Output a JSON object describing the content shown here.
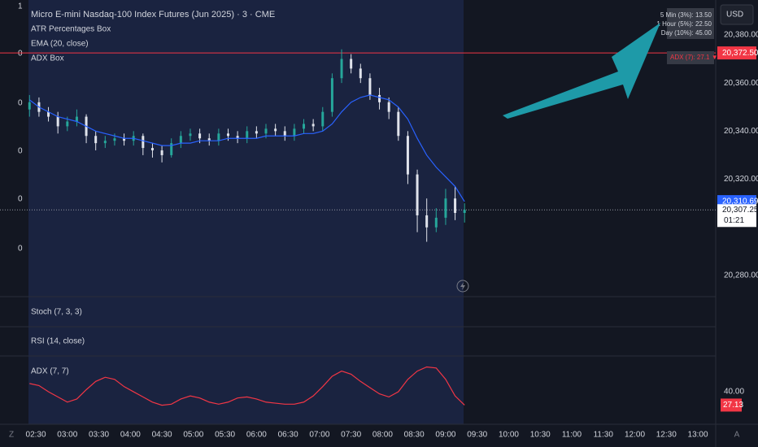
{
  "chart_data": {
    "type": "candlestick",
    "title": "Micro E-mini Nasdaq-100 Index Futures (Jun 2025) · 3 · CME",
    "indicators": [
      "ATR Percentages Box",
      "EMA (20, close)",
      "ADX Box"
    ],
    "left_scale_labels": [
      "1",
      "0",
      "0",
      "0",
      "0",
      "0"
    ],
    "atr_box": [
      "5 Min (3%): 13.50",
      "1 Hour (5%): 22.50",
      "Day (10%): 45.00"
    ],
    "currency": "USD",
    "adx_box_label": "ADX (7): 27.1 ▼",
    "horizontal_line": {
      "value": 20372.5,
      "label": "20,372.50",
      "color": "#f23645"
    },
    "x": [
      144,
      153,
      162,
      171,
      180,
      189,
      198,
      207,
      216,
      225,
      234,
      243,
      252,
      261,
      270,
      279,
      288,
      297,
      306,
      315,
      324,
      333,
      342,
      351,
      360,
      369,
      378,
      387,
      396,
      405,
      414,
      423,
      432,
      441,
      450,
      459,
      468,
      477,
      486,
      495,
      504,
      513,
      522,
      531,
      540,
      549,
      558
    ],
    "open": [
      20349,
      20352,
      20348,
      20346,
      20342,
      20344,
      20346,
      20338,
      20335,
      20336,
      20337,
      20336,
      20338,
      20333,
      20332,
      20330,
      20335,
      20338,
      20339,
      20337,
      20336,
      20339,
      20338,
      20337,
      20340,
      20339,
      20341,
      20340,
      20338,
      20341,
      20343,
      20342,
      20348,
      20362,
      20370,
      20366,
      20362,
      20355,
      20352,
      20348,
      20338,
      20322,
      20305,
      20300,
      20304,
      20312,
      20306
    ],
    "high": [
      20355,
      20354,
      20350,
      20348,
      20346,
      20349,
      20347,
      20340,
      20338,
      20339,
      20339,
      20340,
      20339,
      20335,
      20334,
      20337,
      20340,
      20341,
      20341,
      20339,
      20341,
      20341,
      20340,
      20342,
      20342,
      20343,
      20343,
      20342,
      20343,
      20345,
      20345,
      20350,
      20364,
      20374,
      20372,
      20368,
      20364,
      20358,
      20354,
      20350,
      20340,
      20324,
      20312,
      20308,
      20316,
      20317,
      20310
    ],
    "low": [
      20346,
      20346,
      20344,
      20339,
      20340,
      20342,
      20335,
      20332,
      20333,
      20334,
      20334,
      20334,
      20330,
      20329,
      20327,
      20329,
      20333,
      20336,
      20335,
      20334,
      20334,
      20336,
      20335,
      20335,
      20337,
      20337,
      20338,
      20336,
      20336,
      20339,
      20340,
      20340,
      20346,
      20360,
      20364,
      20360,
      20353,
      20349,
      20345,
      20336,
      20318,
      20298,
      20294,
      20298,
      20301,
      20303,
      20302
    ],
    "close": [
      20352,
      20348,
      20346,
      20342,
      20344,
      20346,
      20338,
      20335,
      20336,
      20337,
      20336,
      20338,
      20333,
      20332,
      20330,
      20335,
      20338,
      20339,
      20337,
      20336,
      20339,
      20338,
      20337,
      20340,
      20339,
      20341,
      20340,
      20338,
      20341,
      20343,
      20342,
      20348,
      20362,
      20370,
      20366,
      20362,
      20355,
      20352,
      20348,
      20338,
      20322,
      20305,
      20300,
      20304,
      20312,
      20306,
      20307.25
    ],
    "up_color": "#26a69a",
    "down_color": "#e0e3eb",
    "close_last_label": "20,307.25",
    "countdown": "01:21",
    "ema": {
      "name": "EMA (20, close)",
      "color": "#2962ff",
      "values": [
        20353,
        20350,
        20348,
        20346,
        20345,
        20344,
        20342,
        20340,
        20339,
        20338,
        20337,
        20337,
        20336,
        20335,
        20334,
        20334,
        20335,
        20335,
        20336,
        20336,
        20336,
        20337,
        20337,
        20337,
        20337,
        20338,
        20338,
        20338,
        20338,
        20339,
        20339,
        20340,
        20343,
        20348,
        20352,
        20354,
        20355,
        20354,
        20353,
        20350,
        20345,
        20337,
        20330,
        20325,
        20321,
        20317,
        20310.69
      ],
      "last_label": "20,310.69"
    },
    "xlim": [
      143,
      797
    ],
    "ylim": [
      20271.2,
      20394.5
    ],
    "yticks": [
      {
        "value": 20380,
        "label": "20,380.00"
      },
      {
        "value": 20360,
        "label": "20,360.00"
      },
      {
        "value": 20340,
        "label": "20,340.00"
      },
      {
        "value": 20320,
        "label": "20,320.00"
      },
      {
        "value": 20280,
        "label": "20,280.00"
      }
    ],
    "xticks": [
      {
        "value": 150,
        "label": "02:30"
      },
      {
        "value": 180,
        "label": "03:00"
      },
      {
        "value": 210,
        "label": "03:30"
      },
      {
        "value": 240,
        "label": "04:00"
      },
      {
        "value": 270,
        "label": "04:30"
      },
      {
        "value": 300,
        "label": "05:00"
      },
      {
        "value": 330,
        "label": "05:30"
      },
      {
        "value": 360,
        "label": "06:00"
      },
      {
        "value": 390,
        "label": "06:30"
      },
      {
        "value": 420,
        "label": "07:00"
      },
      {
        "value": 450,
        "label": "07:30"
      },
      {
        "value": 480,
        "label": "08:00"
      },
      {
        "value": 510,
        "label": "08:30"
      },
      {
        "value": 540,
        "label": "09:00"
      },
      {
        "value": 570,
        "label": "09:30"
      },
      {
        "value": 600,
        "label": "10:00"
      },
      {
        "value": 630,
        "label": "10:30"
      },
      {
        "value": 660,
        "label": "11:00"
      },
      {
        "value": 690,
        "label": "11:30"
      },
      {
        "value": 720,
        "label": "12:00"
      },
      {
        "value": 750,
        "label": "12:30"
      },
      {
        "value": 780,
        "label": "13:00"
      }
    ],
    "panes": [
      "Stoch (7, 3, 3)",
      "RSI (14, close)"
    ],
    "adx": {
      "name": "ADX (7, 7)",
      "color": "#f23645",
      "values": [
        48,
        46,
        40,
        35,
        30,
        33,
        42,
        50,
        54,
        52,
        45,
        40,
        35,
        30,
        27,
        28,
        33,
        36,
        34,
        30,
        28,
        30,
        34,
        35,
        33,
        30,
        29,
        28,
        28,
        30,
        36,
        45,
        55,
        60,
        57,
        50,
        44,
        38,
        35,
        40,
        52,
        60,
        64,
        63,
        52,
        36,
        27.13
      ],
      "ylim": [
        8.6,
        74.6
      ],
      "yticks": [
        {
          "value": 40,
          "label": "40.00"
        }
      ],
      "last_label": "27.13"
    },
    "axis_corner_left": "Z",
    "axis_corner_right": "A"
  }
}
